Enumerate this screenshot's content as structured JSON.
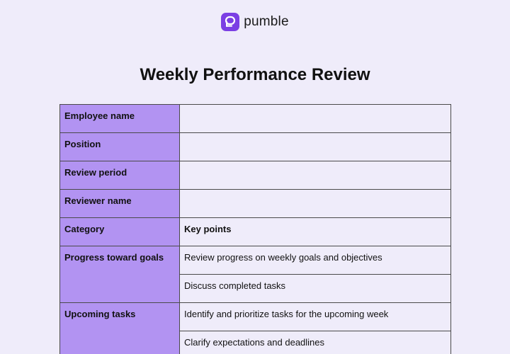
{
  "brand": {
    "name": "pumble",
    "logo_icon": "pumble-logo-icon",
    "logo_color": "#7b3fe4"
  },
  "document": {
    "title": "Weekly Performance Review",
    "fields": [
      {
        "label": "Employee name",
        "value": ""
      },
      {
        "label": "Position",
        "value": ""
      },
      {
        "label": "Review period",
        "value": ""
      },
      {
        "label": "Reviewer name",
        "value": ""
      }
    ],
    "table_header": {
      "category": "Category",
      "points": "Key points"
    },
    "categories": [
      {
        "name": "Progress toward goals",
        "points": [
          "Review progress on weekly goals and objectives",
          "Discuss completed tasks"
        ]
      },
      {
        "name": "Upcoming tasks",
        "points": [
          "Identify and prioritize tasks for the upcoming week",
          "Clarify expectations and deadlines"
        ]
      }
    ]
  },
  "colors": {
    "background": "#efecfa",
    "label_fill": "#b293f2",
    "border": "#4a4a4a"
  }
}
